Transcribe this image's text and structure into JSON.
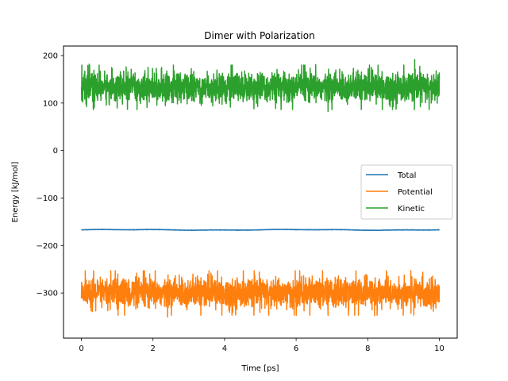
{
  "chart_data": {
    "type": "line",
    "title": "Dimer with Polarization",
    "xlabel": "Time [ps]",
    "ylabel": "Energy [kJ/mol]",
    "xlim": [
      -0.5,
      10.5
    ],
    "ylim": [
      -395,
      220
    ],
    "x_ticks": [
      0,
      2,
      4,
      6,
      8,
      10
    ],
    "x_tick_labels": [
      "0",
      "2",
      "4",
      "6",
      "8",
      "10"
    ],
    "y_ticks": [
      200,
      100,
      0,
      -100,
      -200,
      -300
    ],
    "y_tick_labels": [
      "200",
      "100",
      "0",
      "−100",
      "−200",
      "−300"
    ],
    "grid": false,
    "legend_position": "center-right",
    "time_range": [
      0,
      10
    ],
    "series": [
      {
        "name": "Total",
        "color": "#1f77b4",
        "mean": -167,
        "noise_amplitude": 1,
        "range": [
          -169,
          -165
        ]
      },
      {
        "name": "Potential",
        "color": "#ff7f0e",
        "mean": -300,
        "noise_amplitude": 18,
        "range": [
          -362,
          -253
        ]
      },
      {
        "name": "Kinetic",
        "color": "#2ca02c",
        "mean": 133,
        "noise_amplitude": 18,
        "range": [
          82,
          195
        ]
      }
    ]
  }
}
